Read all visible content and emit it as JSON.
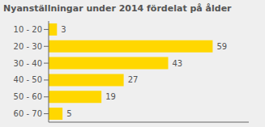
{
  "chart_data": {
    "type": "bar",
    "orientation": "horizontal",
    "title": "Nyanställningar under 2014 fördelat på ålder",
    "categories": [
      "10 - 20",
      "20 - 30",
      "30 - 40",
      "40 - 50",
      "50 - 60",
      "60 - 70"
    ],
    "values": [
      3,
      59,
      43,
      27,
      19,
      5
    ],
    "color": "#FFD700",
    "xlim": [
      0,
      72
    ],
    "data_labels": true,
    "tick_labels": "y",
    "grid": false
  }
}
